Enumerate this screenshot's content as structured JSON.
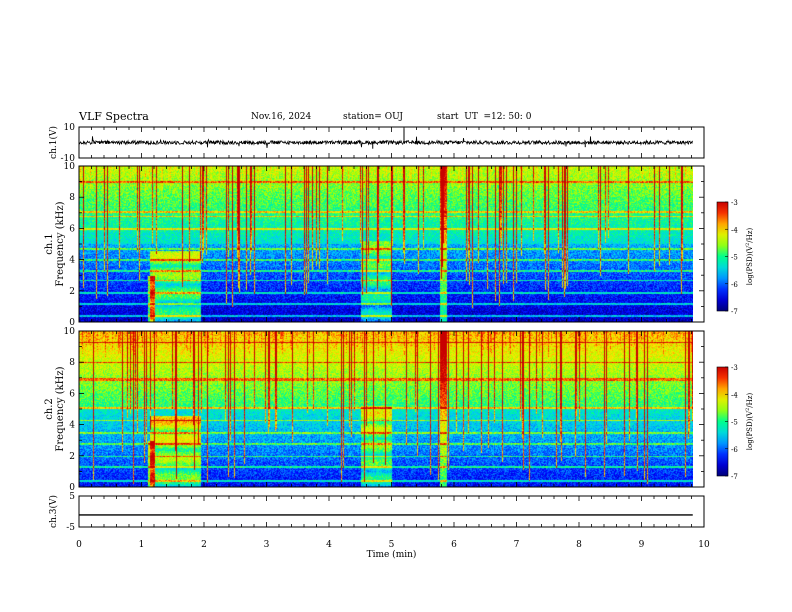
{
  "header": {
    "title": "VLF Spectra",
    "date": "Nov.16, 2024",
    "station": "station= OUJ",
    "start_label": "start  UT  =",
    "start_time": "12: 50: 0"
  },
  "chart_data": [
    {
      "type": "line",
      "name": "ch1-waveform",
      "ylabel": "ch.1(V)",
      "ylim": [
        -10,
        10
      ],
      "ytick_labels": [
        "-10",
        "10"
      ],
      "xlim": [
        0,
        10
      ],
      "data_extent": [
        0,
        9.82
      ],
      "approx_level": 0,
      "approx_amplitude": 1.2
    },
    {
      "type": "heatmap",
      "name": "ch1-spectrogram",
      "ylabel": "ch.1 Frequency (kHz)",
      "ylim": [
        0,
        10
      ],
      "ytick_labels": [
        "0",
        "2",
        "4",
        "6",
        "8",
        "10"
      ],
      "xlim": [
        0,
        10
      ],
      "data_extent": [
        0,
        9.82
      ],
      "colorbar": {
        "label": "log(PSD)(V^2/Hz)",
        "range": [
          -7,
          -3
        ],
        "tick_labels": [
          "-3",
          "-4",
          "-5",
          "-6",
          "-7"
        ]
      }
    },
    {
      "type": "heatmap",
      "name": "ch2-spectrogram",
      "ylabel": "ch.2 Frequency (kHz)",
      "ylim": [
        0,
        10
      ],
      "ytick_labels": [
        "0",
        "2",
        "4",
        "6",
        "8",
        "10"
      ],
      "xlim": [
        0,
        10
      ],
      "data_extent": [
        0,
        9.82
      ],
      "colorbar": {
        "label": "log(PSD)(V^2/Hz)",
        "range": [
          -7,
          -3
        ],
        "tick_labels": [
          "-3",
          "-4",
          "-5",
          "-6",
          "-7"
        ]
      }
    },
    {
      "type": "line",
      "name": "ch3-waveform",
      "ylabel": "ch.3(V)",
      "ylim": [
        -5,
        5
      ],
      "ytick_labels": [
        "-5",
        "5"
      ],
      "xlim": [
        0,
        10
      ],
      "data_extent": [
        0,
        9.82
      ],
      "approx_level": -1.1
    }
  ],
  "xaxis": {
    "label": "Time  (min)",
    "tick_labels": [
      "0",
      "1",
      "2",
      "3",
      "4",
      "5",
      "6",
      "7",
      "8",
      "9",
      "10"
    ]
  },
  "colorbar_label_parts": {
    "prefix": "log(PSD)(V",
    "sup": "2",
    "suffix": "/Hz)"
  }
}
